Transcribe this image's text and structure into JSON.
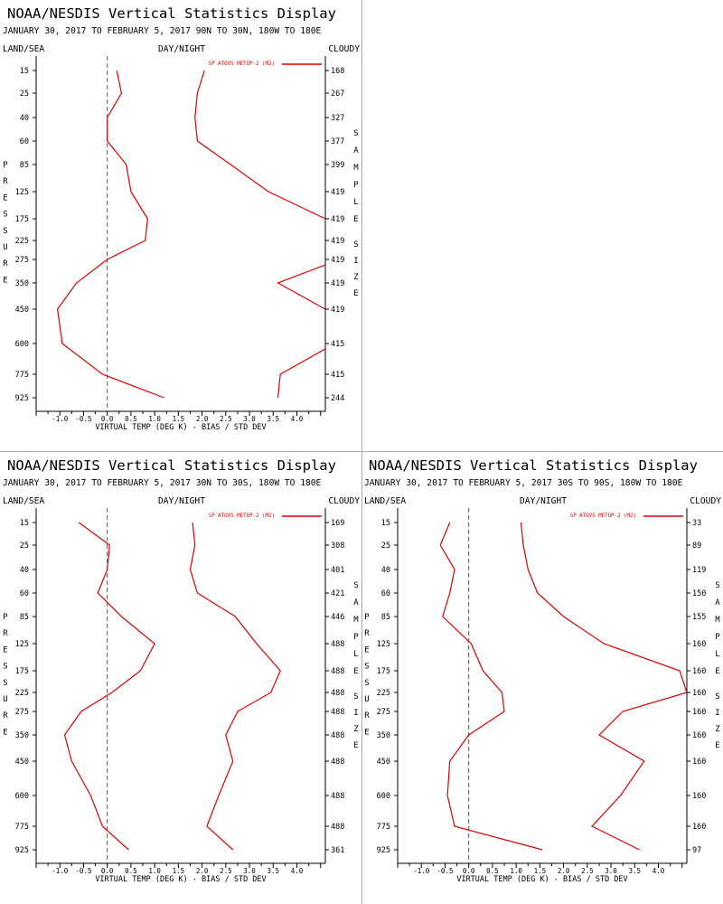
{
  "title": "NOAA/NESDIS Vertical Statistics Display",
  "corner_labels": {
    "left": "LAND/SEA",
    "center": "DAY/NIGHT",
    "right": "CLOUDY"
  },
  "pressure_label": "PRESSURE",
  "sample_label": "SAMPLE SIZE",
  "xlabel": "VIRTUAL TEMP (DEG K) - BIAS / STD DEV",
  "legend": "SP ATOVS METOP-2 (M2)",
  "x_ticks": [
    "-1.0",
    "-0.5",
    "0.0",
    "0.5",
    "1.0",
    "1.5",
    "2.0",
    "2.5",
    "3.0",
    "3.5",
    "4.0"
  ],
  "pressure_levels": [
    "15",
    "25",
    "40",
    "60",
    "85",
    "125",
    "175",
    "225",
    "275",
    "350",
    "450",
    "600",
    "775",
    "925"
  ],
  "colors": {
    "series": "#dd0000",
    "axis": "#000000",
    "zero_line": "#555555"
  },
  "chart_data": [
    {
      "type": "line",
      "subtitle": "JANUARY 30, 2017 TO FEBRUARY 5, 2017  90N TO 30N, 180W TO 180E",
      "xlim": [
        -1.5,
        4.6
      ],
      "sample_size": [
        "168",
        "267",
        "327",
        "377",
        "399",
        "419",
        "419",
        "419",
        "419",
        "419",
        "419",
        "415",
        "415",
        "244"
      ],
      "series": [
        {
          "name": "bias",
          "x": [
            0.2,
            0.3,
            0.0,
            0.0,
            0.4,
            0.5,
            0.85,
            0.8,
            0.0,
            -0.65,
            -1.05,
            -0.95,
            -0.1,
            1.2
          ]
        },
        {
          "name": "std_dev",
          "x": [
            2.05,
            1.9,
            1.85,
            1.9,
            2.6,
            3.4,
            4.6,
            4.7,
            4.9,
            3.6,
            4.6,
            4.8,
            3.65,
            3.6
          ]
        }
      ]
    },
    {
      "type": "line",
      "subtitle": "JANUARY 30, 2017 TO FEBRUARY 5, 2017  30N TO 30S, 180W TO 180E",
      "xlim": [
        -1.5,
        4.6
      ],
      "sample_size": [
        "169",
        "308",
        "401",
        "421",
        "446",
        "488",
        "488",
        "488",
        "488",
        "488",
        "488",
        "488",
        "488",
        "361"
      ],
      "series": [
        {
          "name": "bias",
          "x": [
            -0.6,
            0.05,
            0.0,
            -0.2,
            0.3,
            1.0,
            0.7,
            0.1,
            -0.55,
            -0.9,
            -0.75,
            -0.35,
            -0.1,
            0.45
          ]
        },
        {
          "name": "std_dev",
          "x": [
            1.8,
            1.85,
            1.75,
            1.9,
            2.7,
            3.15,
            3.65,
            3.45,
            2.75,
            2.5,
            2.65,
            2.35,
            2.1,
            2.65
          ]
        }
      ]
    },
    {
      "type": "line",
      "subtitle": "JANUARY 30, 2017 TO FEBRUARY 5, 2017  30S TO 90S, 180W TO 180E",
      "xlim": [
        -1.5,
        4.6
      ],
      "sample_size": [
        "33",
        "89",
        "119",
        "150",
        "155",
        "160",
        "160",
        "160",
        "160",
        "160",
        "160",
        "160",
        "160",
        "97"
      ],
      "series": [
        {
          "name": "bias",
          "x": [
            -0.4,
            -0.6,
            -0.3,
            -0.4,
            -0.55,
            0.05,
            0.3,
            0.7,
            0.75,
            0.0,
            -0.4,
            -0.45,
            -0.3,
            1.55
          ]
        },
        {
          "name": "std_dev",
          "x": [
            1.1,
            1.15,
            1.25,
            1.45,
            2.0,
            2.85,
            4.45,
            4.6,
            3.25,
            2.75,
            3.7,
            3.2,
            2.6,
            3.6
          ]
        }
      ]
    }
  ]
}
